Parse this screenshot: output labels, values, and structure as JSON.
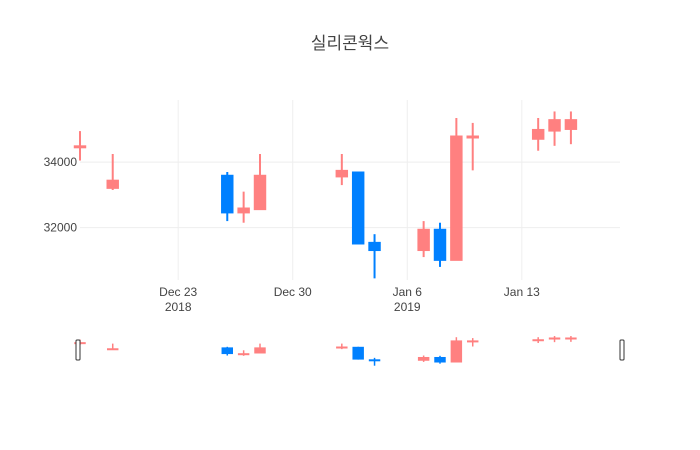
{
  "chart_data": {
    "type": "candlestick",
    "title": "실리콘웍스",
    "colors": {
      "increasing": "#ff8080",
      "decreasing": "#0080ff"
    },
    "yaxis": {
      "range": [
        30400,
        35900
      ],
      "ticks": [
        32000,
        34000
      ]
    },
    "xaxis": {
      "range": [
        "2018-12-17",
        "2019-01-19"
      ],
      "ticks": [
        {
          "date": "2018-12-23",
          "label": "Dec 23",
          "sublabel": "2018"
        },
        {
          "date": "2018-12-30",
          "label": "Dec 30",
          "sublabel": ""
        },
        {
          "date": "2019-01-06",
          "label": "Jan 6",
          "sublabel": "2019"
        },
        {
          "date": "2019-01-13",
          "label": "Jan 13",
          "sublabel": ""
        }
      ]
    },
    "grid": true,
    "rangeslider": true,
    "candles": [
      {
        "date": "2018-12-17",
        "open": 34450,
        "high": 34950,
        "low": 34050,
        "close": 34500
      },
      {
        "date": "2018-12-19",
        "open": 33200,
        "high": 34250,
        "low": 33150,
        "close": 33450
      },
      {
        "date": "2018-12-26",
        "open": 33600,
        "high": 33700,
        "low": 32200,
        "close": 32450
      },
      {
        "date": "2018-12-27",
        "open": 32450,
        "high": 33100,
        "low": 32150,
        "close": 32600
      },
      {
        "date": "2018-12-28",
        "open": 32550,
        "high": 34250,
        "low": 32550,
        "close": 33600
      },
      {
        "date": "2019-01-02",
        "open": 33550,
        "high": 34250,
        "low": 33300,
        "close": 33750
      },
      {
        "date": "2019-01-03",
        "open": 33700,
        "high": 33700,
        "low": 31500,
        "close": 31500
      },
      {
        "date": "2019-01-04",
        "open": 31550,
        "high": 31800,
        "low": 30450,
        "close": 31300
      },
      {
        "date": "2019-01-07",
        "open": 31300,
        "high": 32200,
        "low": 31100,
        "close": 31950
      },
      {
        "date": "2019-01-08",
        "open": 31950,
        "high": 32150,
        "low": 30800,
        "close": 31000
      },
      {
        "date": "2019-01-09",
        "open": 31000,
        "high": 35350,
        "low": 31000,
        "close": 34800
      },
      {
        "date": "2019-01-10",
        "open": 34800,
        "high": 35200,
        "low": 33750,
        "close": 34800
      },
      {
        "date": "2019-01-14",
        "open": 34700,
        "high": 35350,
        "low": 34350,
        "close": 35000
      },
      {
        "date": "2019-01-15",
        "open": 34950,
        "high": 35550,
        "low": 34500,
        "close": 35300
      },
      {
        "date": "2019-01-16",
        "open": 35000,
        "high": 35550,
        "low": 34550,
        "close": 35300
      }
    ]
  }
}
